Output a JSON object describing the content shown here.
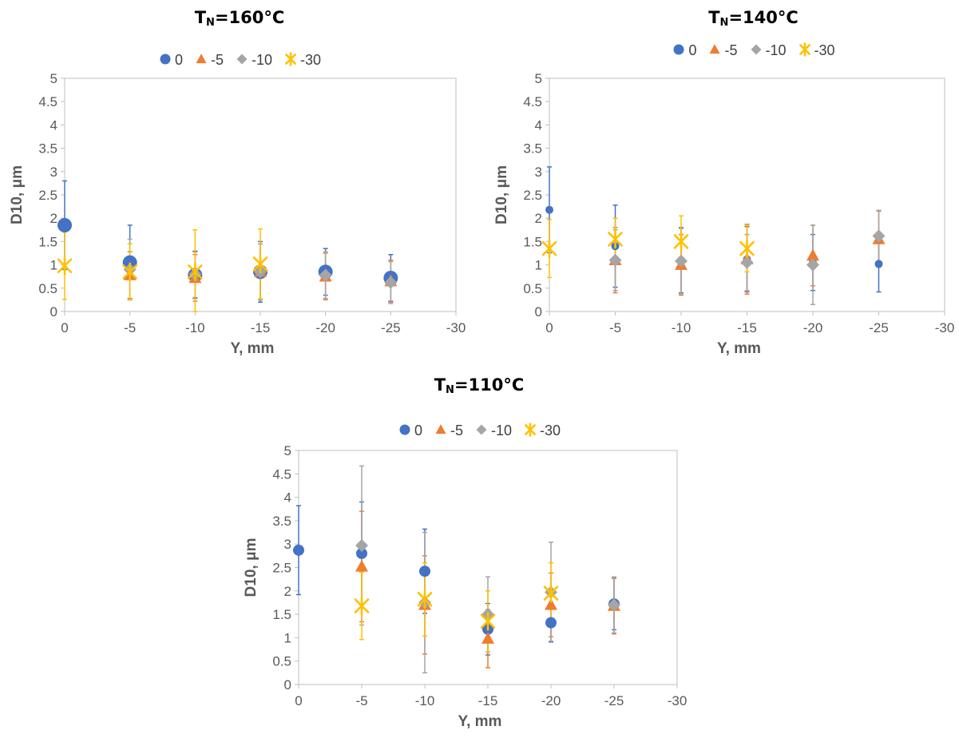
{
  "chart_data": [
    {
      "type": "scatter",
      "title_main": "T",
      "title_sub": "N",
      "title_rest": "=160°C",
      "xlabel": "Y, mm",
      "ylabel": "D10, μm",
      "xlim": [
        0,
        -30
      ],
      "ylim": [
        0,
        5
      ],
      "xticks": [
        "0",
        "-5",
        "-10",
        "-15",
        "-20",
        "-25",
        "-30"
      ],
      "yticks": [
        "0",
        "0.5",
        "1",
        "1.5",
        "2",
        "2.5",
        "3",
        "3.5",
        "4",
        "4.5",
        "5"
      ],
      "legend_position": "top",
      "series": [
        {
          "name": "0",
          "marker": "circle",
          "color": "#4472C4",
          "size": 9,
          "points": [
            [
              0,
              1.85,
              0.95
            ],
            [
              -5,
              1.05,
              0.8
            ],
            [
              -10,
              0.78,
              0.5
            ],
            [
              -15,
              0.85,
              0.65
            ],
            [
              -20,
              0.85,
              0.5
            ],
            [
              -25,
              0.72,
              0.5
            ]
          ]
        },
        {
          "name": "-5",
          "marker": "triangle",
          "color": "#ED7D31",
          "size": 8,
          "points": [
            [
              -5,
              0.78,
              0.5
            ],
            [
              -10,
              0.72,
              0.5
            ],
            [
              -15,
              0.85,
              0.6
            ],
            [
              -20,
              0.75,
              0.5
            ],
            [
              -25,
              0.65,
              0.45
            ]
          ]
        },
        {
          "name": "-10",
          "marker": "diamond",
          "color": "#A5A5A5",
          "size": 8,
          "points": [
            [
              -5,
              0.9,
              0.65
            ],
            [
              -10,
              0.8,
              0.5
            ],
            [
              -15,
              0.85,
              0.6
            ],
            [
              -20,
              0.78,
              0.5
            ],
            [
              -25,
              0.62,
              0.45
            ]
          ]
        },
        {
          "name": "-30",
          "marker": "star",
          "color": "#FFC000",
          "size": 10,
          "points": [
            [
              0,
              0.98,
              0.72
            ],
            [
              -5,
              0.85,
              0.6
            ],
            [
              -10,
              0.85,
              0.9
            ],
            [
              -15,
              1.02,
              0.75
            ]
          ]
        }
      ]
    },
    {
      "type": "scatter",
      "title_main": "T",
      "title_sub": "N",
      "title_rest": "=140°C",
      "xlabel": "Y, mm",
      "ylabel": "D10, μm",
      "xlim": [
        0,
        -30
      ],
      "ylim": [
        0,
        5
      ],
      "xticks": [
        "0",
        "-5",
        "-10",
        "-15",
        "-20",
        "-25",
        "-30"
      ],
      "yticks": [
        "0",
        "0.5",
        "1",
        "1.5",
        "2",
        "2.5",
        "3",
        "3.5",
        "4",
        "4.5",
        "5"
      ],
      "legend_position": "top",
      "series": [
        {
          "name": "0",
          "marker": "circle",
          "color": "#4472C4",
          "size": 5,
          "points": [
            [
              0,
              2.18,
              0.92
            ],
            [
              -5,
              1.4,
              0.88
            ],
            [
              -10,
              1.1,
              0.7
            ],
            [
              -15,
              1.12,
              0.7
            ],
            [
              -20,
              1.05,
              0.6
            ],
            [
              -25,
              1.02,
              0.6
            ]
          ]
        },
        {
          "name": "-5",
          "marker": "triangle",
          "color": "#ED7D31",
          "size": 8,
          "points": [
            [
              -5,
              1.1,
              0.7
            ],
            [
              -10,
              1.0,
              0.65
            ],
            [
              -15,
              1.12,
              0.75
            ],
            [
              -20,
              1.2,
              0.65
            ],
            [
              -25,
              1.55,
              0.6
            ]
          ]
        },
        {
          "name": "-10",
          "marker": "diamond",
          "color": "#A5A5A5",
          "size": 8,
          "points": [
            [
              -5,
              1.1,
              0.65
            ],
            [
              -10,
              1.08,
              0.7
            ],
            [
              -15,
              1.05,
              0.6
            ],
            [
              -20,
              1.0,
              0.85
            ],
            [
              -25,
              1.62,
              0.55
            ]
          ]
        },
        {
          "name": "-30",
          "marker": "star",
          "color": "#FFC000",
          "size": 10,
          "points": [
            [
              0,
              1.35,
              0.62
            ],
            [
              -5,
              1.55,
              0.45
            ],
            [
              -10,
              1.5,
              0.55
            ],
            [
              -15,
              1.35,
              0.5
            ]
          ]
        }
      ]
    },
    {
      "type": "scatter",
      "title_main": "T",
      "title_sub": "N",
      "title_rest": "=110°C",
      "xlabel": "Y, mm",
      "ylabel": "D10, μm",
      "xlim": [
        0,
        -30
      ],
      "ylim": [
        0,
        5
      ],
      "xticks": [
        "0",
        "-5",
        "-10",
        "-15",
        "-20",
        "-25",
        "-30"
      ],
      "yticks": [
        "0",
        "0.5",
        "1",
        "1.5",
        "2",
        "2.5",
        "3",
        "3.5",
        "4",
        "4.5",
        "5"
      ],
      "legend_position": "top",
      "series": [
        {
          "name": "0",
          "marker": "circle",
          "color": "#4472C4",
          "size": 7,
          "points": [
            [
              0,
              2.87,
              0.95
            ],
            [
              -5,
              2.8,
              1.1
            ],
            [
              -10,
              2.42,
              0.9
            ],
            [
              -15,
              1.18,
              0.55
            ],
            [
              -20,
              1.32,
              0.4
            ],
            [
              -25,
              1.72,
              0.55
            ]
          ]
        },
        {
          "name": "-5",
          "marker": "triangle",
          "color": "#ED7D31",
          "size": 8,
          "points": [
            [
              -5,
              2.52,
              1.18
            ],
            [
              -10,
              1.7,
              1.05
            ],
            [
              -15,
              0.98,
              0.62
            ],
            [
              -20,
              1.7,
              0.68
            ],
            [
              -25,
              1.68,
              0.6
            ]
          ]
        },
        {
          "name": "-10",
          "marker": "diamond",
          "color": "#A5A5A5",
          "size": 8,
          "points": [
            [
              -5,
              2.97,
              1.7
            ],
            [
              -10,
              1.75,
              1.5
            ],
            [
              -15,
              1.5,
              0.8
            ],
            [
              -20,
              1.97,
              1.07
            ],
            [
              -25,
              1.7,
              0.6
            ]
          ]
        },
        {
          "name": "-30",
          "marker": "star",
          "color": "#FFC000",
          "size": 10,
          "points": [
            [
              -5,
              1.68,
              0.72
            ],
            [
              -10,
              1.82,
              0.78
            ],
            [
              -15,
              1.35,
              0.65
            ],
            [
              -20,
              1.95,
              0.65
            ]
          ]
        }
      ]
    }
  ]
}
